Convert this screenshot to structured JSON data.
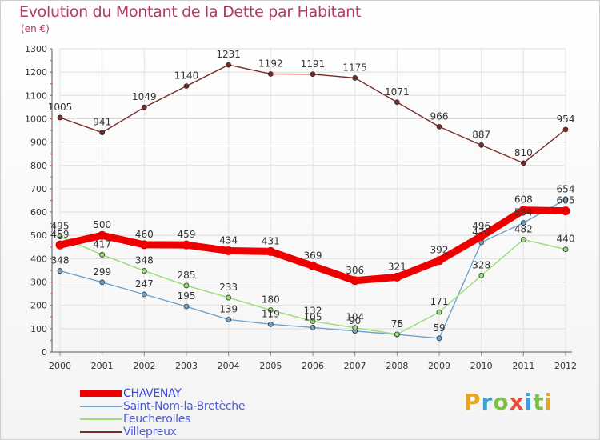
{
  "title": "Evolution du Montant de la Dette par Habitant",
  "subtitle": "(en €)",
  "logo": {
    "text": "Proxiti",
    "colors": [
      "#e8a41c",
      "#3fa0d8",
      "#7cc242",
      "#e84d3c",
      "#3fa0d8",
      "#7cc242",
      "#e8a41c"
    ]
  },
  "chart_data": {
    "type": "line",
    "title": "Evolution du Montant de la Dette par Habitant",
    "subtitle": "(en €)",
    "xlabel": "",
    "ylabel": "",
    "ylim": [
      0,
      1300
    ],
    "yticks": [
      0,
      100,
      200,
      300,
      400,
      500,
      600,
      700,
      800,
      900,
      1000,
      1100,
      1200,
      1300
    ],
    "grid": true,
    "legend_position": "bottom-left",
    "x": [
      "2000",
      "2001",
      "2002",
      "2003",
      "2004",
      "2005",
      "2006",
      "2007",
      "2008",
      "2009",
      "2010",
      "2011",
      "2012"
    ],
    "series": [
      {
        "name": "CHAVENAY",
        "color": "#ee0000",
        "values": [
          459,
          500,
          460,
          459,
          434,
          431,
          369,
          306,
          321,
          392,
          496,
          608,
          605
        ]
      },
      {
        "name": "Saint-Nom-la-Bretèche",
        "color": "#6fa3cc",
        "values": [
          348,
          299,
          247,
          195,
          139,
          119,
          105,
          90,
          75,
          59,
          470,
          554,
          654
        ]
      },
      {
        "name": "Feucherolles",
        "color": "#99dd77",
        "values": [
          495,
          417,
          348,
          285,
          233,
          180,
          132,
          104,
          76,
          171,
          328,
          482,
          440
        ]
      },
      {
        "name": "Villepreux",
        "color": "#7a2a2a",
        "values": [
          1005,
          941,
          1049,
          1140,
          1231,
          1192,
          1191,
          1175,
          1071,
          966,
          887,
          810,
          954
        ]
      }
    ]
  }
}
